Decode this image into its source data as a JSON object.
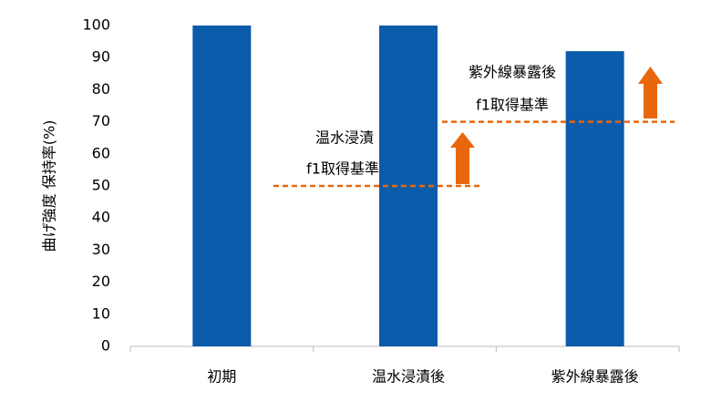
{
  "chart_data": {
    "type": "bar",
    "y_label": "曲げ強度 保持率(%)",
    "categories": [
      "初期",
      "温水浸漬後",
      "紫外線暴露後"
    ],
    "values": [
      100,
      100,
      92
    ],
    "color": "#0b5bab",
    "ylim": [
      0,
      100
    ],
    "yticks": [
      0,
      10,
      20,
      30,
      40,
      50,
      60,
      70,
      80,
      90,
      100
    ],
    "grid": false,
    "reference_lines": [
      {
        "value": 50,
        "color": "#e8670c",
        "label": [
          "温水浸漬",
          "f1取得基準"
        ]
      },
      {
        "value": 70,
        "color": "#e8670c",
        "label": [
          "紫外線暴露後",
          "f1取得基準"
        ]
      }
    ]
  }
}
